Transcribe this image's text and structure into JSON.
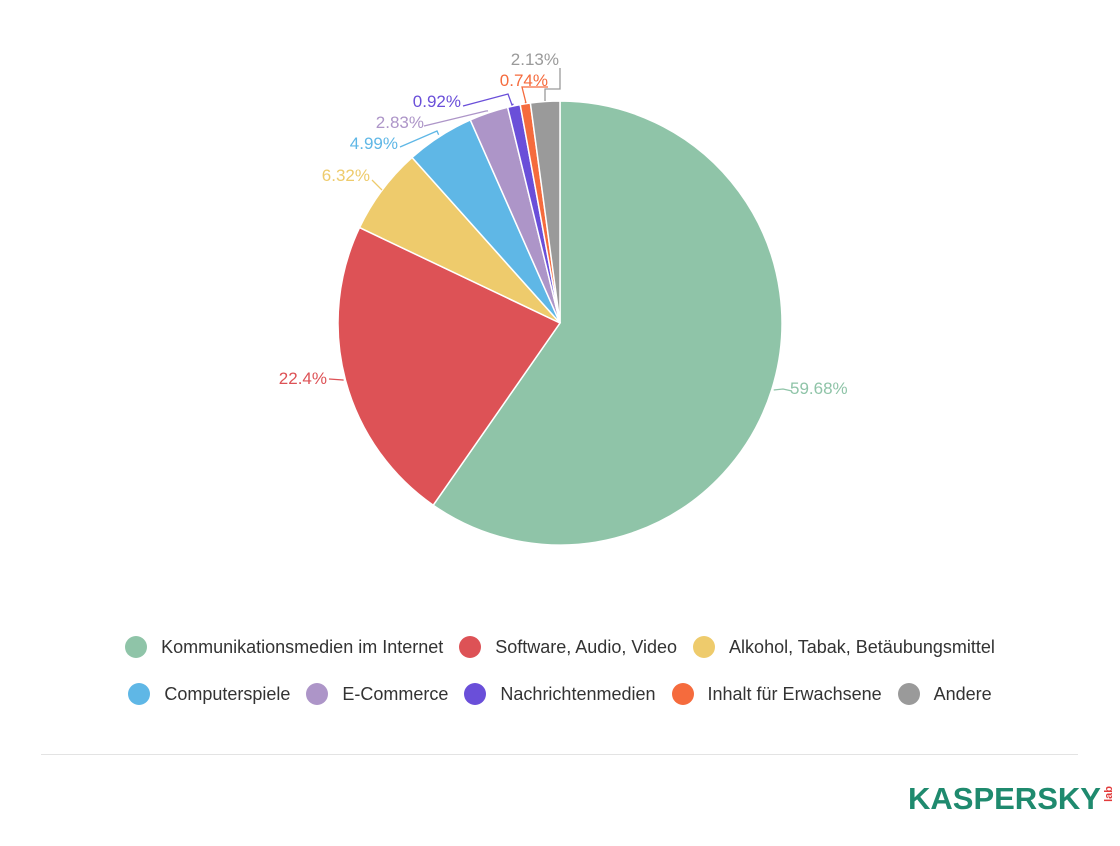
{
  "chart_data": {
    "type": "pie",
    "title": "",
    "slices": [
      {
        "name": "Kommunikationsmedien im Internet",
        "value": 59.68,
        "label": "59.68%",
        "color": "#8fc4a8"
      },
      {
        "name": "Software, Audio, Video",
        "value": 22.4,
        "label": "22.4%",
        "color": "#dd5256"
      },
      {
        "name": "Alkohol, Tabak, Betäubungsmittel",
        "value": 6.32,
        "label": "6.32%",
        "color": "#eecb6c"
      },
      {
        "name": "Computerspiele",
        "value": 4.99,
        "label": "4.99%",
        "color": "#5fb7e6"
      },
      {
        "name": "E-Commerce",
        "value": 2.83,
        "label": "2.83%",
        "color": "#ad95c8"
      },
      {
        "name": "Nachrichtenmedien",
        "value": 0.92,
        "label": "0.92%",
        "color": "#6a4fd9"
      },
      {
        "name": "Inhalt für Erwachsene",
        "value": 0.74,
        "label": "0.74%",
        "color": "#f56b3d"
      },
      {
        "name": "Andere",
        "value": 2.13,
        "label": "2.13%",
        "color": "#9a9a9a"
      }
    ],
    "legend_position": "bottom"
  },
  "legend": {
    "row1": [
      {
        "label": "Kommunikationsmedien im Internet",
        "color": "#8fc4a8"
      },
      {
        "label": "Software, Audio, Video",
        "color": "#dd5256"
      },
      {
        "label": "Alkohol, Tabak, Betäubungsmittel",
        "color": "#eecb6c"
      }
    ],
    "row2": [
      {
        "label": "Computerspiele",
        "color": "#5fb7e6"
      },
      {
        "label": "E-Commerce",
        "color": "#ad95c8"
      },
      {
        "label": "Nachrichtenmedien",
        "color": "#6a4fd9"
      },
      {
        "label": "Inhalt für Erwachsene",
        "color": "#f56b3d"
      },
      {
        "label": "Andere",
        "color": "#9a9a9a"
      }
    ]
  },
  "logo": {
    "word": "KASPERSKY",
    "suffix": "lab",
    "word_color": "#1f8a6e",
    "accent_color": "#e23b3b"
  }
}
